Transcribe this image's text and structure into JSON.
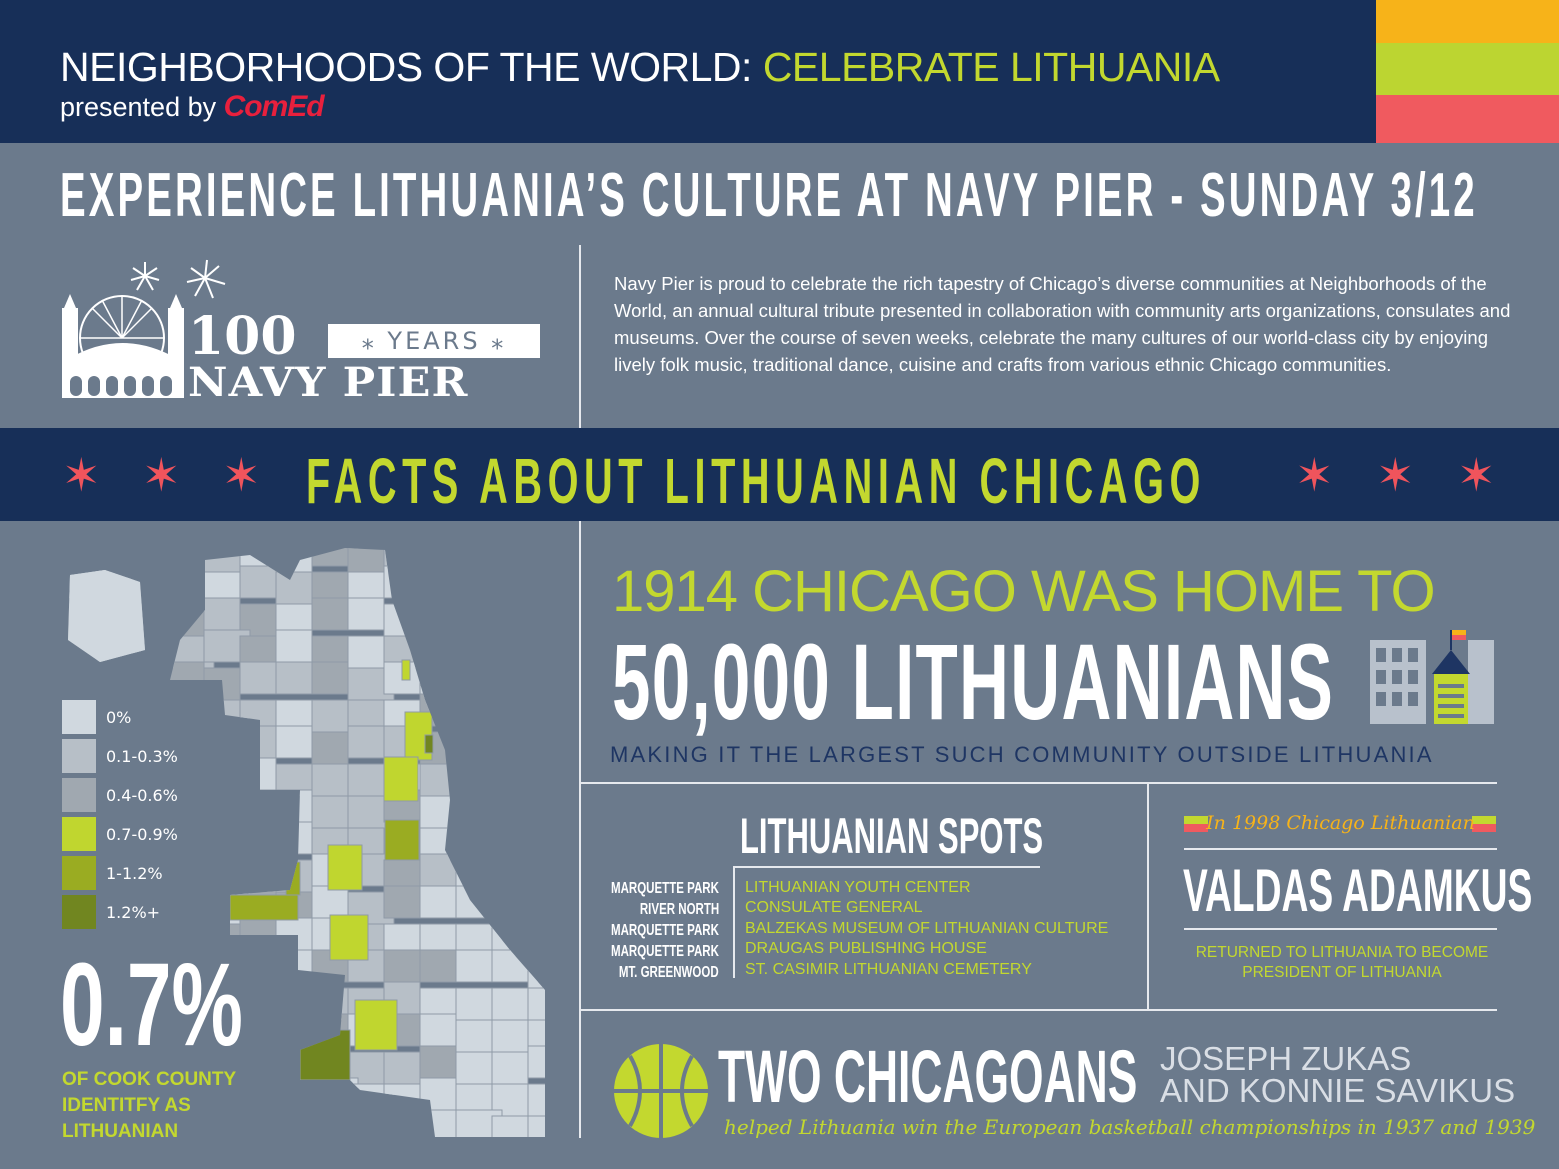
{
  "header": {
    "title_main": "NEIGHBORHOODS OF THE WORLD:",
    "title_accent": "CELEBRATE LITHUANIA",
    "presented_by": "presented by",
    "sponsor": "ComEd",
    "stripe_colors": [
      "#f7b319",
      "#bcd531",
      "#f05a5f"
    ]
  },
  "headline": "EXPERIENCE LITHUANIA’S CULTURE AT NAVY PIER - SUNDAY 3/12",
  "logo": {
    "number": "100",
    "years": "YEARS",
    "name": "NAVY PIER"
  },
  "intro": "Navy Pier is proud to celebrate the rich tapestry of Chicago’s diverse communities at Neighborhoods of the World, an annual cultural tribute presented in collaboration with community arts organizations, consulates and museums. Over the course of seven weeks, celebrate the many cultures of our world-class city by enjoying lively folk music, traditional dance, cuisine and crafts from various ethnic Chicago communities.",
  "facts_banner": {
    "title": "FACTS ABOUT LITHUANIAN CHICAGO",
    "star_icon": "six-point-star-icon"
  },
  "map": {
    "legend": [
      {
        "label": "0%",
        "color": "#d0d8df"
      },
      {
        "label": "0.1-0.3%",
        "color": "#b7bfc7"
      },
      {
        "label": "0.4-0.6%",
        "color": "#a0a8b0"
      },
      {
        "label": "0.7-0.9%",
        "color": "#c0d62f"
      },
      {
        "label": "1-1.2%",
        "color": "#9aac22"
      },
      {
        "label": "1.2%+",
        "color": "#718620"
      }
    ]
  },
  "cook_county": {
    "value": "0.7%",
    "text": "OF COOK COUNTY IDENTITFY AS LITHUANIAN"
  },
  "population": {
    "line1": "1914 CHICAGO WAS HOME TO",
    "line2": "50,000 LITHUANIANS",
    "line3": "MAKING IT THE LARGEST SUCH COMMUNITY OUTSIDE LITHUANIA"
  },
  "spots": {
    "title": "LITHUANIAN SPOTS",
    "items": [
      {
        "area": "MARQUETTE PARK",
        "place": "LITHUANIAN YOUTH CENTER"
      },
      {
        "area": "RIVER NORTH",
        "place": "CONSULATE GENERAL"
      },
      {
        "area": "MARQUETTE PARK",
        "place": "BALZEKAS MUSEUM OF LITHUANIAN CULTURE"
      },
      {
        "area": "MARQUETTE PARK",
        "place": "DRAUGAS PUBLISHING HOUSE"
      },
      {
        "area": "MT. GREENWOOD",
        "place": "ST. CASIMIR LITHUANIAN CEMETERY"
      }
    ]
  },
  "president": {
    "intro": "In 1998 Chicago Lithuanian",
    "name": "VALDAS ADAMKUS",
    "text": "RETURNED TO LITHUANIA TO BECOME PRESIDENT OF LITHUANIA"
  },
  "basketball": {
    "title": "TWO CHICAGOANS",
    "names_line1": "JOSEPH ZUKAS",
    "names_line2": "AND KONNIE SAVIKUS",
    "text": "helped Lithuania win the European basketball championships in 1937 and 1939"
  }
}
